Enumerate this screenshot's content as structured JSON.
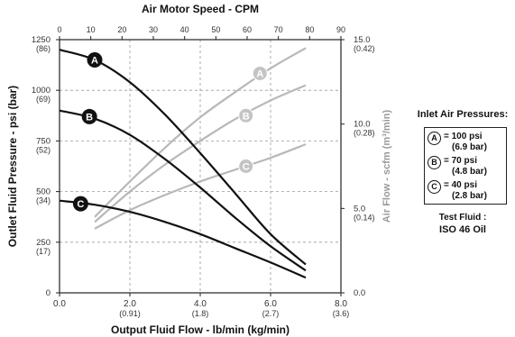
{
  "chart_data": {
    "type": "line",
    "title": "Air Motor Speed - CPM",
    "xlabel": "Output Fluid Flow - lb/min (kg/min)",
    "ylabel": "Outlet Fluid Pressure - psi (bar)",
    "y2label": "Air Flow - scfm (m³/min)",
    "xlim": [
      0,
      8
    ],
    "ylim": [
      0,
      1250
    ],
    "y2lim": [
      0,
      15
    ],
    "top_axis_lim": [
      0,
      90
    ],
    "x_ticks": [
      {
        "value": 0,
        "label": "0.0",
        "sub": ""
      },
      {
        "value": 2,
        "label": "2.0",
        "sub": "(0.91)"
      },
      {
        "value": 4,
        "label": "4.0",
        "sub": "(1.8)"
      },
      {
        "value": 6,
        "label": "6.0",
        "sub": "(2.7)"
      },
      {
        "value": 8,
        "label": "8.0",
        "sub": "(3.6)"
      }
    ],
    "top_ticks": [
      {
        "value": 0,
        "label": "0"
      },
      {
        "value": 10,
        "label": "10"
      },
      {
        "value": 20,
        "label": "20"
      },
      {
        "value": 30,
        "label": "30"
      },
      {
        "value": 40,
        "label": "40"
      },
      {
        "value": 50,
        "label": "50"
      },
      {
        "value": 60,
        "label": "60"
      },
      {
        "value": 70,
        "label": "70"
      },
      {
        "value": 80,
        "label": "80"
      },
      {
        "value": 90,
        "label": "90"
      }
    ],
    "y_ticks": [
      {
        "value": 0,
        "label": "0",
        "sub": ""
      },
      {
        "value": 250,
        "label": "250",
        "sub": "(17)"
      },
      {
        "value": 500,
        "label": "500",
        "sub": "(34)"
      },
      {
        "value": 750,
        "label": "750",
        "sub": "(52)"
      },
      {
        "value": 1000,
        "label": "1000",
        "sub": "(69)"
      },
      {
        "value": 1250,
        "label": "1250",
        "sub": "(86)"
      }
    ],
    "y2_ticks": [
      {
        "value": 0,
        "label": "0.0",
        "sub": ""
      },
      {
        "value": 5,
        "label": "5.0",
        "sub": "(0.14)"
      },
      {
        "value": 10,
        "label": "10.0",
        "sub": "(0.28)"
      },
      {
        "value": 15,
        "label": "15.0",
        "sub": "(0.42)"
      }
    ],
    "grid_x": [
      2,
      4,
      6
    ],
    "grid_y": [],
    "pressure_series": [
      {
        "name": "A",
        "label_at": [
          1.0,
          1150
        ],
        "x": [
          0,
          1,
          2,
          3,
          4,
          5,
          6,
          7
        ],
        "y": [
          1200,
          1150,
          1040,
          880,
          690,
          490,
          290,
          140
        ]
      },
      {
        "name": "B",
        "label_at": [
          0.85,
          870
        ],
        "x": [
          0,
          1,
          2,
          3,
          4,
          5,
          6,
          7
        ],
        "y": [
          900,
          860,
          780,
          660,
          520,
          370,
          230,
          110
        ]
      },
      {
        "name": "C",
        "label_at": [
          0.6,
          440
        ],
        "x": [
          0,
          1,
          2,
          3,
          4,
          5,
          6,
          7
        ],
        "y": [
          455,
          435,
          400,
          350,
          290,
          220,
          150,
          75
        ]
      }
    ],
    "airflow_series": [
      {
        "name": "A",
        "label_at": [
          5.7,
          13.0
        ],
        "x": [
          1,
          2,
          3,
          4,
          5,
          6,
          7
        ],
        "y": [
          4.5,
          6.6,
          8.6,
          10.4,
          11.9,
          13.3,
          14.5
        ]
      },
      {
        "name": "B",
        "label_at": [
          5.3,
          10.5
        ],
        "x": [
          1,
          2,
          3,
          4,
          5,
          6,
          7
        ],
        "y": [
          4.2,
          6.0,
          7.6,
          9.0,
          10.3,
          11.4,
          12.3
        ]
      },
      {
        "name": "C",
        "label_at": [
          5.3,
          7.5
        ],
        "x": [
          1,
          2,
          3,
          4,
          5,
          6,
          7
        ],
        "y": [
          3.8,
          4.9,
          5.8,
          6.6,
          7.3,
          8.0,
          8.8
        ]
      }
    ],
    "colors": {
      "pressure": "#111111",
      "airflow": "#b8b8b8",
      "axis": "#222222",
      "grid": "#9a9a9a"
    }
  },
  "legend": {
    "title": "Inlet Air Pressures:",
    "items": [
      {
        "badge": "A",
        "psi": "= 100 psi",
        "bar": "(6.9 bar)"
      },
      {
        "badge": "B",
        "psi": "= 70 psi",
        "bar": "(4.8 bar)"
      },
      {
        "badge": "C",
        "psi": "= 40 psi",
        "bar": "(2.8 bar)"
      }
    ],
    "fluid_title": "Test Fluid :",
    "fluid_value": "ISO 46 Oil"
  }
}
